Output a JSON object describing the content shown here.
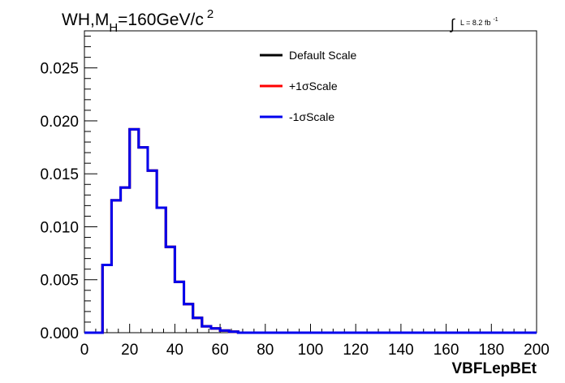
{
  "chart_data": {
    "type": "line",
    "title": {
      "prefix": "WH,M",
      "subscript": "H",
      "middle": "=160GeV/c",
      "superscript": "2"
    },
    "lumi_label": {
      "integral": "∫",
      "text": "L = 8.2 fb",
      "superscript": "-1"
    },
    "xlabel": "VBFLepBEt",
    "ylabel": "",
    "xlim": [
      0,
      200
    ],
    "ylim": [
      0,
      0.0285
    ],
    "x_ticks": [
      "0",
      "20",
      "40",
      "60",
      "80",
      "100",
      "120",
      "140",
      "160",
      "180",
      "200"
    ],
    "y_ticks": [
      "0.000",
      "0.005",
      "0.010",
      "0.015",
      "0.020",
      "0.025"
    ],
    "grid": false,
    "legend_position": "top-center",
    "bin_edges": [
      0,
      4,
      8,
      12,
      16,
      20,
      24,
      28,
      32,
      36,
      40,
      44,
      48,
      52,
      56,
      60,
      64,
      68,
      72,
      76,
      80,
      84,
      88,
      92,
      96,
      100,
      104,
      108,
      112,
      116,
      120,
      124,
      128,
      132,
      136,
      140,
      144,
      148,
      152,
      156,
      160,
      164,
      168,
      172,
      176,
      180,
      184,
      188,
      192,
      196,
      200
    ],
    "series": [
      {
        "name": "Default Scale",
        "color": "#000000",
        "values": [
          0,
          0,
          0.0064,
          0.0125,
          0.0137,
          0.0192,
          0.0175,
          0.0153,
          0.0118,
          0.0081,
          0.0048,
          0.0027,
          0.0014,
          0.0006,
          0.0004,
          0.0002,
          0.0001,
          0,
          0,
          0,
          0,
          0,
          0,
          0,
          0,
          0,
          0,
          0,
          0,
          0,
          0,
          0,
          0,
          0,
          0,
          0,
          0,
          0,
          0,
          0,
          0,
          0,
          0,
          0,
          0,
          0,
          0,
          0,
          0,
          0
        ]
      },
      {
        "name": "+1σScale",
        "color": "#ff0000",
        "values": [
          0,
          0,
          0.0064,
          0.0125,
          0.0137,
          0.0192,
          0.0175,
          0.0153,
          0.0118,
          0.0081,
          0.0048,
          0.0027,
          0.0014,
          0.0006,
          0.0004,
          0.0002,
          0.0001,
          0,
          0,
          0,
          0,
          0,
          0,
          0,
          0,
          0,
          0,
          0,
          0,
          0,
          0,
          0,
          0,
          0,
          0,
          0,
          0,
          0,
          0,
          0,
          0,
          0,
          0,
          0,
          0,
          0,
          0,
          0,
          0,
          0
        ]
      },
      {
        "name": "-1σScale",
        "color": "#0000ee",
        "values": [
          0,
          0,
          0.0064,
          0.0125,
          0.0137,
          0.0192,
          0.0175,
          0.0153,
          0.0118,
          0.0081,
          0.0048,
          0.0027,
          0.0014,
          0.0006,
          0.0004,
          0.0002,
          0.0001,
          0,
          0,
          0,
          0,
          0,
          0,
          0,
          0,
          0,
          0,
          0,
          0,
          0,
          0,
          0,
          0,
          0,
          0,
          0,
          0,
          0,
          0,
          0,
          0,
          0,
          0,
          0,
          0,
          0,
          0,
          0,
          0,
          0
        ]
      }
    ]
  }
}
